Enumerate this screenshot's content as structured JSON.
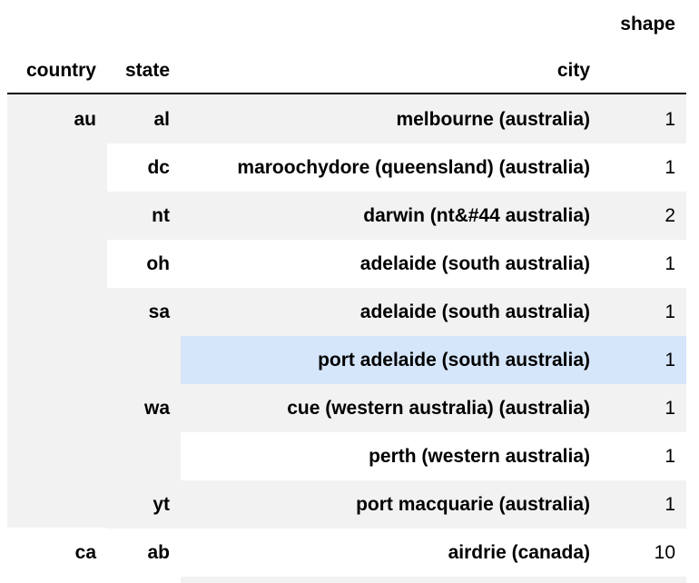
{
  "table": {
    "columns_top": {
      "shape": "shape"
    },
    "columns_index": {
      "country": "country",
      "state": "state",
      "city": "city"
    },
    "rows": [
      {
        "country": "au",
        "state": "al",
        "city": "melbourne (australia)",
        "shape": "1"
      },
      {
        "country": "",
        "state": "dc",
        "city": "maroochydore (queensland) (australia)",
        "shape": "1"
      },
      {
        "country": "",
        "state": "nt",
        "city": "darwin (nt&#44 australia)",
        "shape": "2"
      },
      {
        "country": "",
        "state": "oh",
        "city": "adelaide (south australia)",
        "shape": "1"
      },
      {
        "country": "",
        "state": "sa",
        "city": "adelaide (south australia)",
        "shape": "1"
      },
      {
        "country": "",
        "state": "",
        "city": "port adelaide (south australia)",
        "shape": "1"
      },
      {
        "country": "",
        "state": "wa",
        "city": "cue (western australia) (australia)",
        "shape": "1"
      },
      {
        "country": "",
        "state": "",
        "city": "perth (western australia)",
        "shape": "1"
      },
      {
        "country": "",
        "state": "yt",
        "city": "port macquarie (australia)",
        "shape": "1"
      },
      {
        "country": "ca",
        "state": "ab",
        "city": "airdrie (canada)",
        "shape": "10"
      }
    ]
  }
}
